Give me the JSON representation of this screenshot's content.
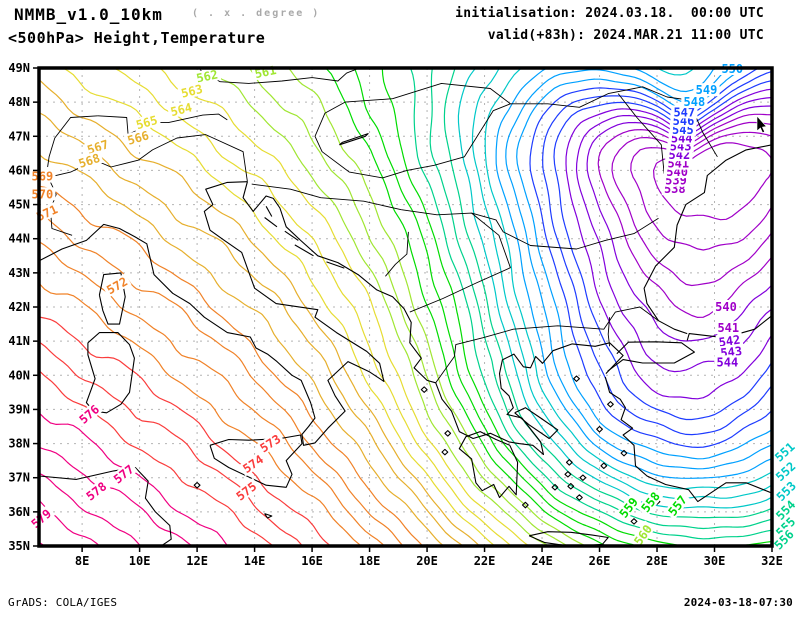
{
  "header": {
    "model": "NMMB_v1.0_10km",
    "grid_note": "( . x . degree )",
    "product": "<500hPa> Height,Temperature",
    "init": "initialisation: 2024.03.18.  00:00 UTC",
    "valid": "valid(+83h): 2024.MAR.21 11:00 UTC"
  },
  "footer": {
    "left": "GrADS: COLA/IGES",
    "right": "2024-03-18-07:30"
  },
  "axes": {
    "lat_range": [
      35,
      49
    ],
    "lon_range": [
      6.5,
      32
    ],
    "grid_color": "#b4b4b4",
    "lat_ticks": [
      {
        "label": "49N",
        "lat": 49
      },
      {
        "label": "48N",
        "lat": 48
      },
      {
        "label": "47N",
        "lat": 47
      },
      {
        "label": "46N",
        "lat": 46
      },
      {
        "label": "45N",
        "lat": 45
      },
      {
        "label": "44N",
        "lat": 44
      },
      {
        "label": "43N",
        "lat": 43
      },
      {
        "label": "42N",
        "lat": 42
      },
      {
        "label": "41N",
        "lat": 41
      },
      {
        "label": "40N",
        "lat": 40
      },
      {
        "label": "39N",
        "lat": 39
      },
      {
        "label": "38N",
        "lat": 38
      },
      {
        "label": "37N",
        "lat": 37
      },
      {
        "label": "36N",
        "lat": 36
      },
      {
        "label": "35N",
        "lat": 35
      }
    ],
    "lon_ticks": [
      {
        "label": "8E",
        "lon": 8
      },
      {
        "label": "10E",
        "lon": 10
      },
      {
        "label": "12E",
        "lon": 12
      },
      {
        "label": "14E",
        "lon": 14
      },
      {
        "label": "16E",
        "lon": 16
      },
      {
        "label": "18E",
        "lon": 18
      },
      {
        "label": "20E",
        "lon": 20
      },
      {
        "label": "22E",
        "lon": 22
      },
      {
        "label": "24E",
        "lon": 24
      },
      {
        "label": "26E",
        "lon": 26
      },
      {
        "label": "28E",
        "lon": 28
      },
      {
        "label": "30E",
        "lon": 30
      },
      {
        "label": "32E",
        "lon": 32
      }
    ]
  },
  "chart_data": {
    "type": "contour-map",
    "field": "500 hPa geopotential height (dam)",
    "contour_interval": 1,
    "level_min": 538,
    "level_max": 580,
    "low_center": {
      "lon": 29.0,
      "lat": 45.6,
      "min_value": 538
    },
    "high_corner": {
      "lon": 6.5,
      "lat": 35.0,
      "value": 579
    },
    "color_bands": [
      {
        "from": 538,
        "to": 541,
        "color": "#A000C8"
      },
      {
        "from": 542,
        "to": 544,
        "color": "#8200DC"
      },
      {
        "from": 545,
        "to": 547,
        "color": "#1E3CFF"
      },
      {
        "from": 548,
        "to": 550,
        "color": "#00A0FF"
      },
      {
        "from": 551,
        "to": 553,
        "color": "#00C8C8"
      },
      {
        "from": 554,
        "to": 556,
        "color": "#00D28C"
      },
      {
        "from": 557,
        "to": 559,
        "color": "#00DC00"
      },
      {
        "from": 560,
        "to": 562,
        "color": "#A0E632"
      },
      {
        "from": 563,
        "to": 565,
        "color": "#E6DC32"
      },
      {
        "from": 566,
        "to": 568,
        "color": "#E6AF2D"
      },
      {
        "from": 569,
        "to": 572,
        "color": "#F08228"
      },
      {
        "from": 573,
        "to": 575,
        "color": "#FA3C3C"
      },
      {
        "from": 576,
        "to": 580,
        "color": "#F00082"
      }
    ],
    "contour_labels": [
      {
        "v": 538,
        "lon": 28.62,
        "lat": 45.45,
        "rot": 0
      },
      {
        "v": 539,
        "lon": 28.66,
        "lat": 45.7,
        "rot": 0
      },
      {
        "v": 540,
        "lon": 28.7,
        "lat": 45.95,
        "rot": 0
      },
      {
        "v": 541,
        "lon": 28.74,
        "lat": 46.2,
        "rot": 0
      },
      {
        "v": 542,
        "lon": 28.78,
        "lat": 46.45,
        "rot": 0
      },
      {
        "v": 543,
        "lon": 28.82,
        "lat": 46.7,
        "rot": 0
      },
      {
        "v": 544,
        "lon": 28.86,
        "lat": 46.94,
        "rot": 0
      },
      {
        "v": 545,
        "lon": 28.9,
        "lat": 47.19,
        "rot": 0
      },
      {
        "v": 546,
        "lon": 28.92,
        "lat": 47.45,
        "rot": 0
      },
      {
        "v": 547,
        "lon": 28.95,
        "lat": 47.7,
        "rot": 0
      },
      {
        "v": 548,
        "lon": 29.3,
        "lat": 48.0,
        "rot": 0
      },
      {
        "v": 549,
        "lon": 29.72,
        "lat": 48.35,
        "rot": 0
      },
      {
        "v": 550,
        "lon": 30.62,
        "lat": 48.97,
        "rot": 0
      },
      {
        "v": 540,
        "lon": 30.4,
        "lat": 42.0,
        "rot": 0
      },
      {
        "v": 541,
        "lon": 30.48,
        "lat": 41.38,
        "rot": 0
      },
      {
        "v": 542,
        "lon": 30.52,
        "lat": 41.0,
        "rot": -8
      },
      {
        "v": 543,
        "lon": 30.58,
        "lat": 40.68,
        "rot": -6
      },
      {
        "v": 544,
        "lon": 30.45,
        "lat": 40.38,
        "rot": 0
      },
      {
        "v": 551,
        "lon": 32.45,
        "lat": 37.75,
        "rot": -42
      },
      {
        "v": 552,
        "lon": 32.48,
        "lat": 37.18,
        "rot": -42
      },
      {
        "v": 553,
        "lon": 32.5,
        "lat": 36.6,
        "rot": -45
      },
      {
        "v": 554,
        "lon": 32.48,
        "lat": 36.05,
        "rot": -45
      },
      {
        "v": 555,
        "lon": 32.48,
        "lat": 35.55,
        "rot": -45
      },
      {
        "v": 556,
        "lon": 32.42,
        "lat": 35.18,
        "rot": -45
      },
      {
        "v": 557,
        "lon": 28.72,
        "lat": 36.18,
        "rot": -52
      },
      {
        "v": 558,
        "lon": 27.78,
        "lat": 36.28,
        "rot": -52
      },
      {
        "v": 559,
        "lon": 27.02,
        "lat": 36.12,
        "rot": -52
      },
      {
        "v": 560,
        "lon": 27.52,
        "lat": 35.32,
        "rot": -55
      },
      {
        "v": 561,
        "lon": 14.38,
        "lat": 48.88,
        "rot": -12
      },
      {
        "v": 562,
        "lon": 12.35,
        "lat": 48.75,
        "rot": -12
      },
      {
        "v": 563,
        "lon": 11.82,
        "lat": 48.32,
        "rot": -14
      },
      {
        "v": 564,
        "lon": 11.45,
        "lat": 47.78,
        "rot": -14
      },
      {
        "v": 565,
        "lon": 10.25,
        "lat": 47.4,
        "rot": -16
      },
      {
        "v": 566,
        "lon": 9.95,
        "lat": 46.95,
        "rot": -16
      },
      {
        "v": 567,
        "lon": 8.55,
        "lat": 46.68,
        "rot": -18
      },
      {
        "v": 568,
        "lon": 8.25,
        "lat": 46.28,
        "rot": -18
      },
      {
        "v": 569,
        "lon": 6.62,
        "lat": 45.82,
        "rot": 0
      },
      {
        "v": 570,
        "lon": 6.62,
        "lat": 45.3,
        "rot": 0
      },
      {
        "v": 571,
        "lon": 6.78,
        "lat": 44.75,
        "rot": -25
      },
      {
        "v": 572,
        "lon": 9.22,
        "lat": 42.62,
        "rot": -30
      },
      {
        "v": 573,
        "lon": 14.55,
        "lat": 38.0,
        "rot": -33
      },
      {
        "v": 574,
        "lon": 13.95,
        "lat": 37.4,
        "rot": -34
      },
      {
        "v": 575,
        "lon": 13.72,
        "lat": 36.6,
        "rot": -37
      },
      {
        "v": 576,
        "lon": 8.25,
        "lat": 38.85,
        "rot": -40
      },
      {
        "v": 577,
        "lon": 9.45,
        "lat": 37.1,
        "rot": -38
      },
      {
        "v": 578,
        "lon": 8.5,
        "lat": 36.6,
        "rot": -37
      },
      {
        "v": 579,
        "lon": 6.58,
        "lat": 35.8,
        "rot": -40
      }
    ]
  }
}
